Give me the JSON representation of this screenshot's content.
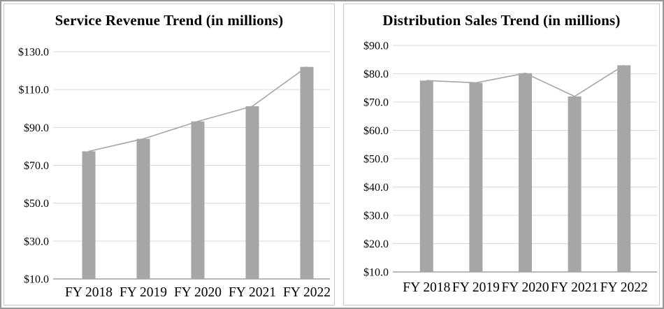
{
  "page": {
    "background": "#ffffff"
  },
  "chart_data": [
    {
      "type": "bar",
      "panel": "left",
      "title": "Service Revenue Trend (in millions)",
      "categories": [
        "FY 2018",
        "FY 2019",
        "FY 2020",
        "FY 2021",
        "FY 2022"
      ],
      "series": [
        {
          "name": "Service Revenue bars",
          "type": "bar",
          "values": [
            77.4,
            84.0,
            93.2,
            101.2,
            122.0
          ]
        },
        {
          "name": "Service Revenue trend line",
          "type": "line",
          "values": [
            77.4,
            84.0,
            93.2,
            101.2,
            122.0
          ]
        }
      ],
      "xlabel": "",
      "ylabel": "",
      "ylim": [
        10,
        130
      ],
      "ytick_step": 20,
      "ytick_labels": [
        "$10.0",
        "$30.0",
        "$50.0",
        "$70.0",
        "$90.0",
        "$110.0",
        "$130.0"
      ],
      "grid": true,
      "legend": false,
      "colors": {
        "bar": "#a6a6a6",
        "line": "#a6a6a6",
        "grid": "#d9d9d9",
        "axis": "#8f8f8f",
        "text": "#000000"
      }
    },
    {
      "type": "bar",
      "panel": "right",
      "title": "Distribution Sales Trend (in millions)",
      "categories": [
        "FY 2018",
        "FY 2019",
        "FY 2020",
        "FY 2021",
        "FY 2022"
      ],
      "series": [
        {
          "name": "Distribution Sales bars",
          "type": "bar",
          "values": [
            77.6,
            76.8,
            80.2,
            72.0,
            83.0
          ]
        },
        {
          "name": "Distribution Sales trend line",
          "type": "line",
          "values": [
            77.6,
            76.8,
            80.2,
            72.0,
            83.0
          ]
        }
      ],
      "xlabel": "",
      "ylabel": "",
      "ylim": [
        10,
        90
      ],
      "ytick_step": 10,
      "ytick_labels": [
        "$10.0",
        "$20.0",
        "$30.0",
        "$40.0",
        "$50.0",
        "$60.0",
        "$70.0",
        "$80.0",
        "$90.0"
      ],
      "grid": true,
      "legend": false,
      "colors": {
        "bar": "#a6a6a6",
        "line": "#a6a6a6",
        "grid": "#d9d9d9",
        "axis": "#8f8f8f",
        "text": "#000000"
      }
    }
  ]
}
